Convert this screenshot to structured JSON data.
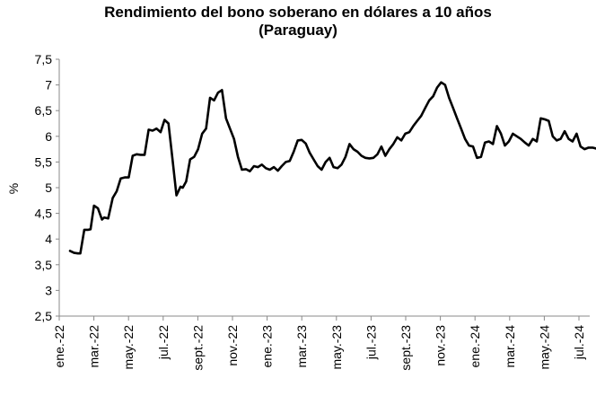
{
  "chart_data": {
    "type": "line",
    "title": "Rendimiento del bono soberano en dólares a 10 años",
    "subtitle": "(Paraguay)",
    "xlabel": "",
    "ylabel": "%",
    "ylim": [
      2.5,
      7.5
    ],
    "yticks": [
      "2,5",
      "3",
      "3,5",
      "4",
      "4,5",
      "5",
      "5,5",
      "6",
      "6,5",
      "7",
      "7,5"
    ],
    "grid": false,
    "x_tick_labels": [
      "ene.-22",
      "mar.-22",
      "may.-22",
      "jul.-22",
      "sept.-22",
      "nov.-22",
      "ene.-23",
      "mar.-23",
      "may.-23",
      "jul.-23",
      "sept.-23",
      "nov.-23",
      "ene.-24",
      "mar.-24",
      "may.-24",
      "jul.-24"
    ],
    "series": [
      {
        "color": "#000000",
        "x": [
          "2022-01-20",
          "2022-01-27",
          "2022-02-03",
          "2022-02-07",
          "2022-02-14",
          "2022-02-21",
          "2022-02-25",
          "2022-03-03",
          "2022-03-10",
          "2022-03-17",
          "2022-03-21",
          "2022-03-28",
          "2022-04-05",
          "2022-04-12",
          "2022-04-19",
          "2022-04-26",
          "2022-05-03",
          "2022-05-10",
          "2022-05-17",
          "2022-05-24",
          "2022-05-31",
          "2022-06-07",
          "2022-06-14",
          "2022-06-21",
          "2022-06-28",
          "2022-07-05",
          "2022-07-12",
          "2022-07-19",
          "2022-07-26",
          "2022-08-02",
          "2022-08-06",
          "2022-08-12",
          "2022-08-19",
          "2022-08-26",
          "2022-09-02",
          "2022-09-09",
          "2022-09-16",
          "2022-09-23",
          "2022-09-30",
          "2022-10-07",
          "2022-10-14",
          "2022-10-21",
          "2022-10-28",
          "2022-11-04",
          "2022-11-11",
          "2022-11-18",
          "2022-11-25",
          "2022-12-02",
          "2022-12-09",
          "2022-12-16",
          "2022-12-23",
          "2022-12-30",
          "2023-01-06",
          "2023-01-13",
          "2023-01-20",
          "2023-01-27",
          "2023-02-03",
          "2023-02-10",
          "2023-02-17",
          "2023-02-24",
          "2023-03-03",
          "2023-03-10",
          "2023-03-17",
          "2023-03-24",
          "2023-03-31",
          "2023-04-07",
          "2023-04-14",
          "2023-04-21",
          "2023-04-28",
          "2023-05-05",
          "2023-05-12",
          "2023-05-19",
          "2023-05-26",
          "2023-06-02",
          "2023-06-09",
          "2023-06-16",
          "2023-06-23",
          "2023-06-30",
          "2023-07-07",
          "2023-07-14",
          "2023-07-21",
          "2023-07-28",
          "2023-08-04",
          "2023-08-11",
          "2023-08-18",
          "2023-08-25",
          "2023-09-01",
          "2023-09-08",
          "2023-09-15",
          "2023-09-22",
          "2023-09-29",
          "2023-10-06",
          "2023-10-13",
          "2023-10-20",
          "2023-10-27",
          "2023-11-03",
          "2023-11-10",
          "2023-11-17",
          "2023-11-24",
          "2023-12-01",
          "2023-12-08",
          "2023-12-15",
          "2023-12-22",
          "2023-12-29",
          "2024-01-05",
          "2024-01-12",
          "2024-01-19",
          "2024-01-26",
          "2024-02-02",
          "2024-02-09",
          "2024-02-16",
          "2024-02-23",
          "2024-03-01",
          "2024-03-08",
          "2024-03-15",
          "2024-03-22",
          "2024-03-29",
          "2024-04-05",
          "2024-04-12",
          "2024-04-19",
          "2024-04-26",
          "2024-05-03",
          "2024-05-10",
          "2024-05-17",
          "2024-05-24",
          "2024-05-31",
          "2024-06-07",
          "2024-06-14",
          "2024-06-21",
          "2024-06-28",
          "2024-07-05",
          "2024-07-12",
          "2024-07-19",
          "2024-07-26",
          "2024-08-02"
        ],
        "values": [
          3.77,
          3.73,
          3.72,
          3.72,
          4.18,
          4.18,
          4.19,
          4.65,
          4.6,
          4.38,
          4.42,
          4.4,
          4.8,
          4.93,
          5.18,
          5.2,
          5.2,
          5.62,
          5.65,
          5.64,
          5.64,
          6.13,
          6.11,
          6.15,
          6.08,
          6.32,
          6.25,
          5.55,
          4.85,
          5.02,
          5.0,
          5.12,
          5.55,
          5.6,
          5.75,
          6.05,
          6.15,
          6.75,
          6.7,
          6.85,
          6.9,
          6.35,
          6.15,
          5.95,
          5.6,
          5.35,
          5.36,
          5.32,
          5.42,
          5.4,
          5.45,
          5.38,
          5.35,
          5.4,
          5.33,
          5.42,
          5.5,
          5.52,
          5.7,
          5.92,
          5.93,
          5.86,
          5.68,
          5.55,
          5.42,
          5.35,
          5.5,
          5.58,
          5.4,
          5.38,
          5.45,
          5.6,
          5.85,
          5.75,
          5.7,
          5.62,
          5.58,
          5.57,
          5.58,
          5.65,
          5.8,
          5.62,
          5.75,
          5.85,
          5.98,
          5.92,
          6.05,
          6.08,
          6.2,
          6.3,
          6.4,
          6.55,
          6.7,
          6.78,
          6.95,
          7.05,
          7.0,
          6.75,
          6.55,
          6.35,
          6.15,
          5.95,
          5.82,
          5.8,
          5.58,
          5.6,
          5.88,
          5.9,
          5.85,
          6.2,
          6.05,
          5.82,
          5.9,
          6.05,
          6.0,
          5.95,
          5.88,
          5.82,
          5.95,
          5.9,
          6.35,
          6.33,
          6.3,
          6.0,
          5.92,
          5.95,
          6.1,
          5.95,
          5.9,
          6.05,
          5.8,
          5.75,
          5.78,
          5.78,
          5.76
        ]
      }
    ]
  }
}
